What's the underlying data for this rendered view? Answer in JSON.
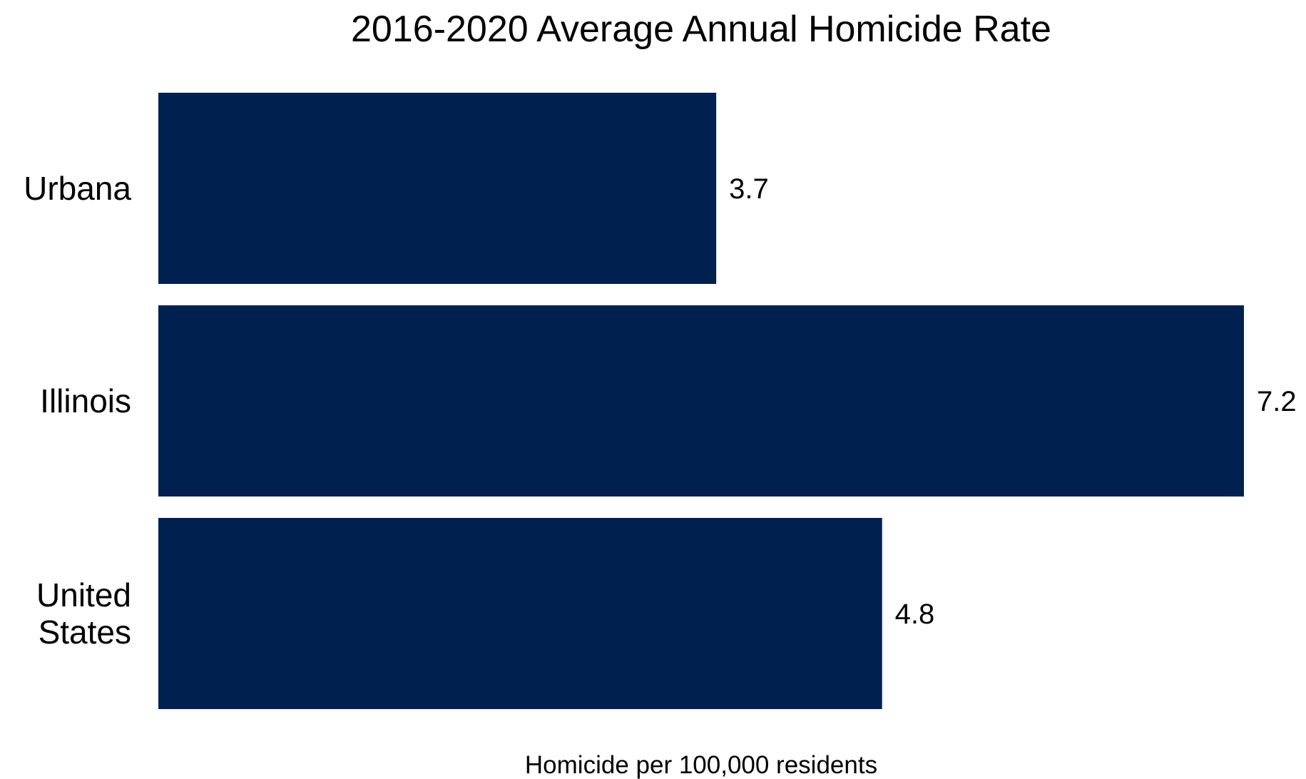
{
  "chart_data": {
    "type": "bar",
    "orientation": "horizontal",
    "title": "2016-2020 Average Annual Homicide Rate",
    "xlabel": "Homicide per 100,000 residents",
    "ylabel": "",
    "categories": [
      [
        "Urbana"
      ],
      [
        "Illinois"
      ],
      [
        "United",
        "States"
      ]
    ],
    "values": [
      3.7,
      7.2,
      4.8
    ],
    "value_labels": [
      "3.7",
      "7.2",
      "4.8"
    ],
    "xlim": [
      0,
      7.2
    ],
    "grid": false,
    "legend": "none",
    "bar_color": "#002050"
  }
}
